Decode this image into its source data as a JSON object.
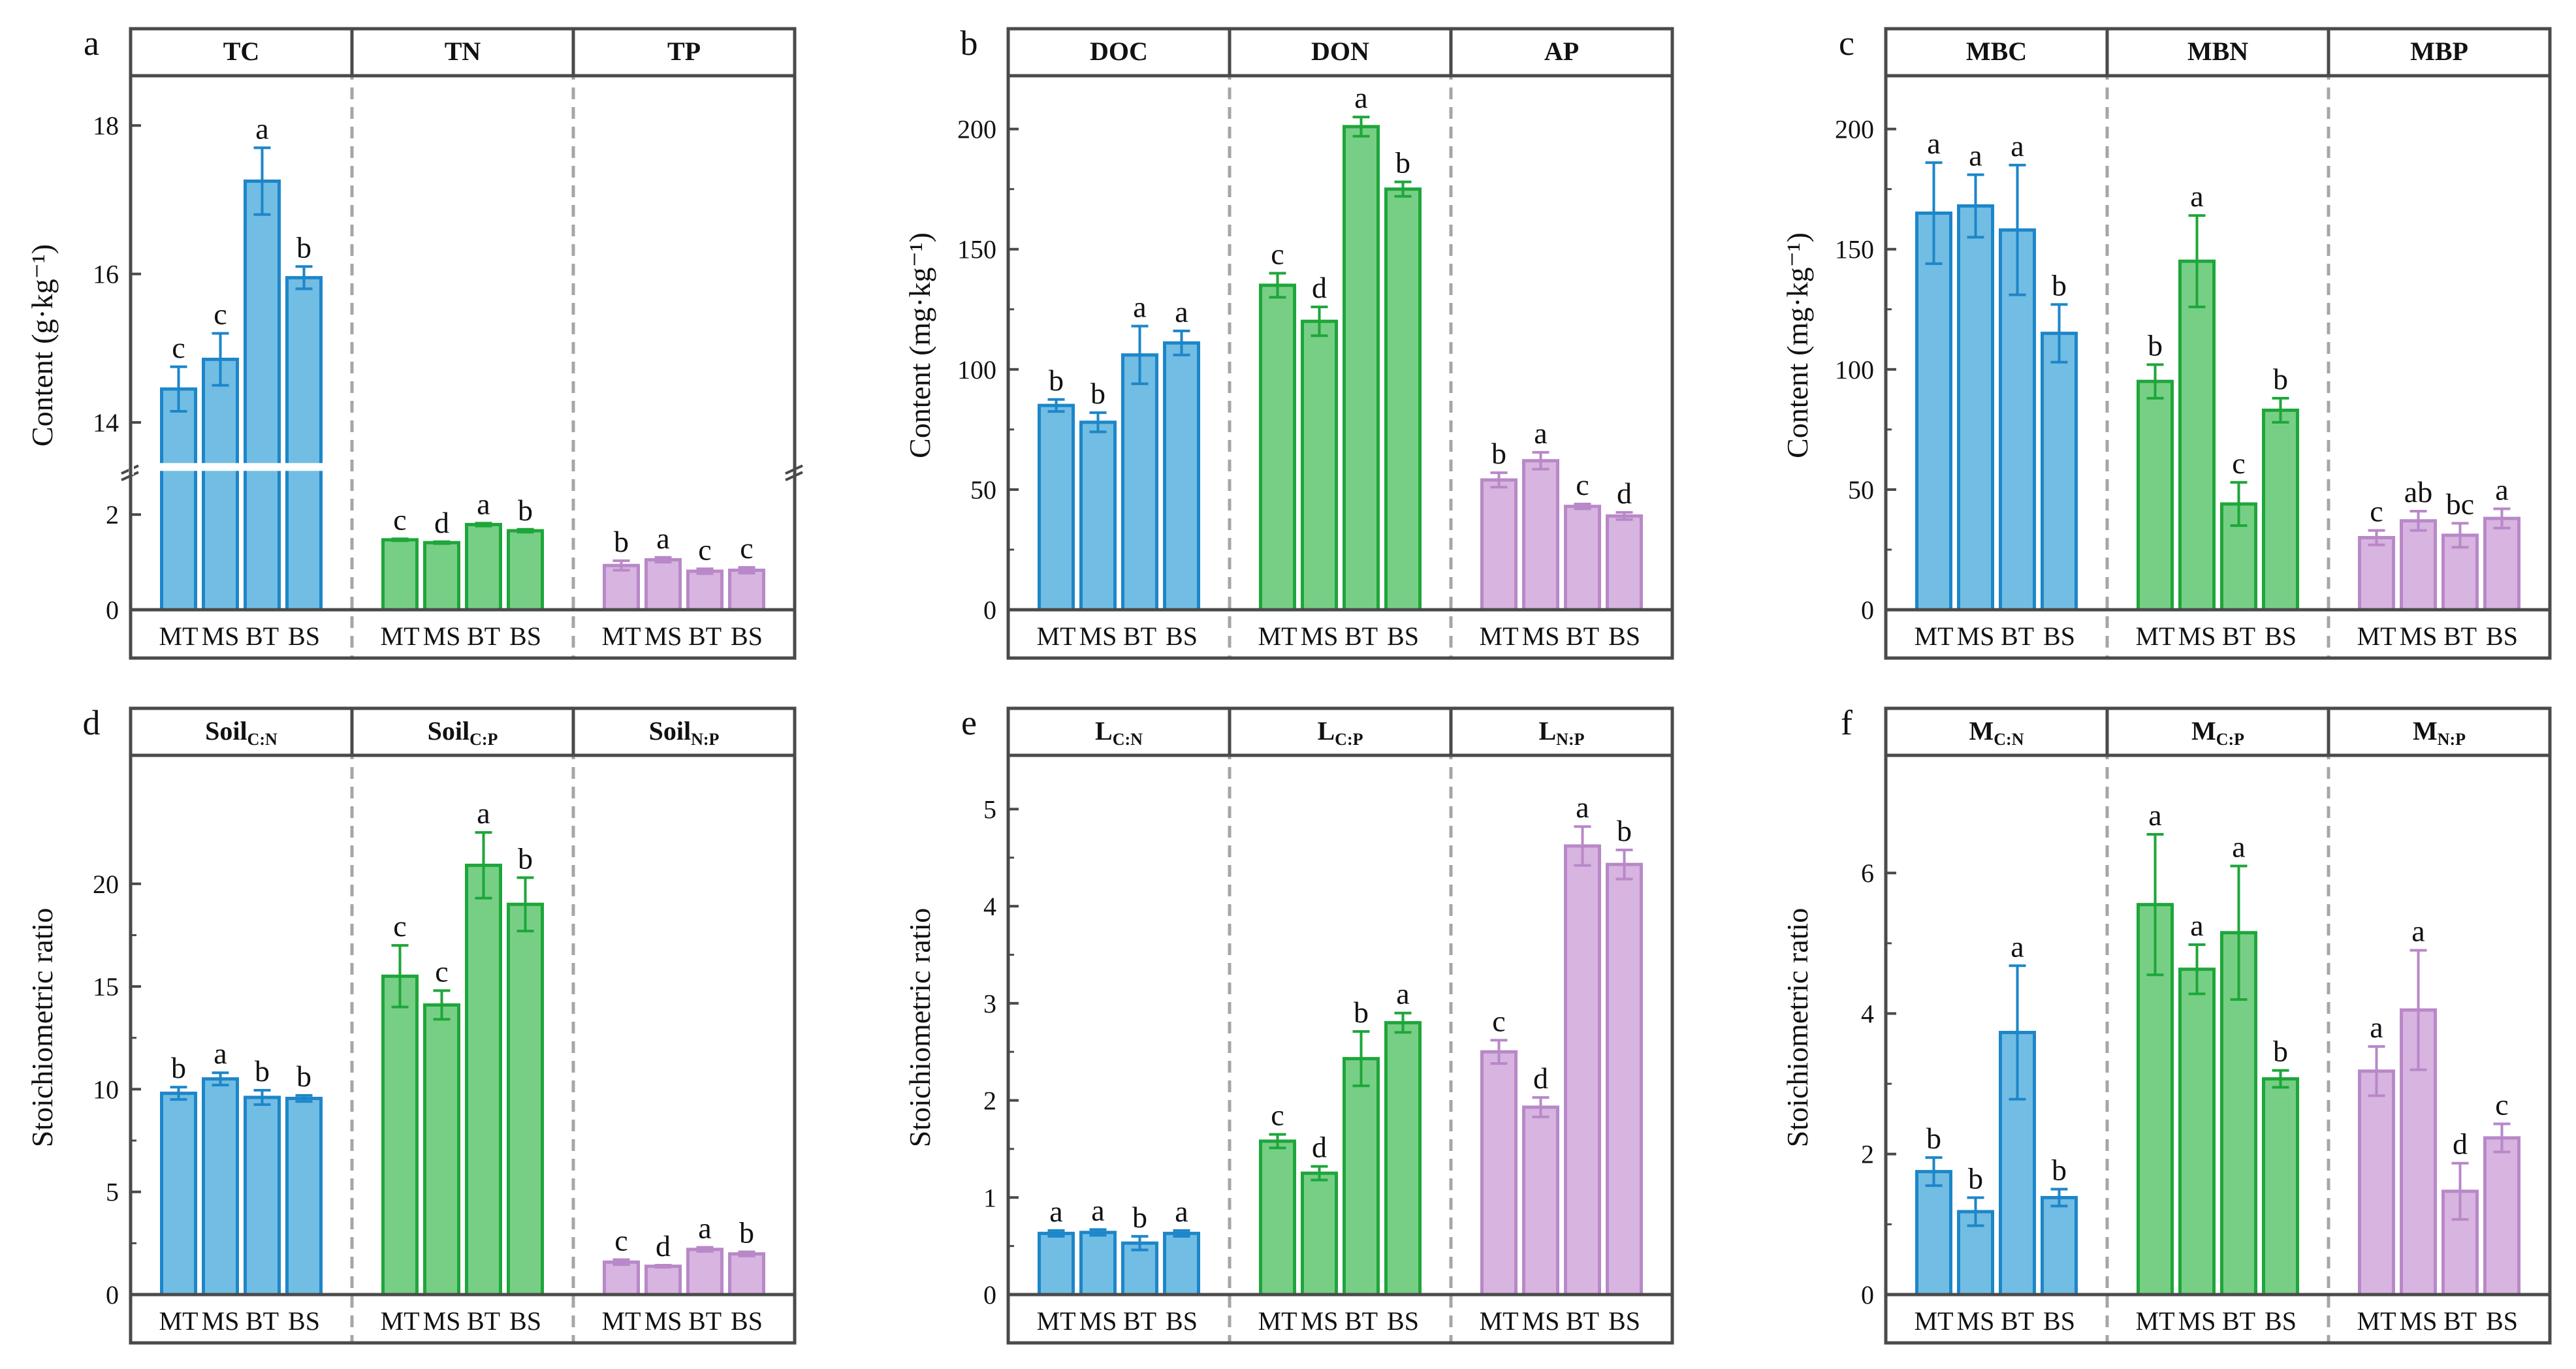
{
  "figure": {
    "groups": [
      "MT",
      "MS",
      "BT",
      "BS"
    ],
    "colors": {
      "blue": {
        "fill": "#72bde3",
        "stroke": "#1d86c9"
      },
      "green": {
        "fill": "#77cf86",
        "stroke": "#1ea63a"
      },
      "purple": {
        "fill": "#d8b4e0",
        "stroke": "#b888c8"
      },
      "separator": "#a6a6a6",
      "frame": "#4a4a4a"
    }
  },
  "chart_data": [
    {
      "type": "bar",
      "panel": "a",
      "ylabel": "Content (g·kg⁻¹)",
      "axis_break": {
        "lower": [
          0,
          3
        ],
        "upper": [
          13.4,
          18.6
        ]
      },
      "lower_ticks": [
        0,
        2
      ],
      "upper_ticks": [
        14,
        16,
        18
      ],
      "categories": [
        "MT",
        "MS",
        "BT",
        "BS"
      ],
      "series": [
        {
          "name": "TC",
          "color": "blue",
          "values": [
            14.45,
            14.85,
            17.25,
            15.95
          ],
          "errors": [
            0.3,
            0.35,
            0.45,
            0.15
          ],
          "letters": [
            "c",
            "c",
            "a",
            "b"
          ]
        },
        {
          "name": "TN",
          "color": "green",
          "values": [
            1.47,
            1.41,
            1.79,
            1.66
          ],
          "errors": [
            0.02,
            0.02,
            0.03,
            0.03
          ],
          "letters": [
            "c",
            "d",
            "a",
            "b"
          ]
        },
        {
          "name": "TP",
          "color": "purple",
          "values": [
            0.93,
            1.05,
            0.81,
            0.83
          ],
          "errors": [
            0.1,
            0.05,
            0.05,
            0.06
          ],
          "letters": [
            "b",
            "a",
            "c",
            "c"
          ]
        }
      ]
    },
    {
      "type": "bar",
      "panel": "b",
      "ylabel": "Content (mg·kg⁻¹)",
      "ylim": [
        0,
        220
      ],
      "ticks": [
        0,
        50,
        100,
        150,
        200
      ],
      "categories": [
        "MT",
        "MS",
        "BT",
        "BS"
      ],
      "series": [
        {
          "name": "DOC",
          "color": "blue",
          "values": [
            85,
            78,
            106,
            111
          ],
          "errors": [
            2.5,
            4,
            12,
            5
          ],
          "letters": [
            "b",
            "b",
            "a",
            "a"
          ]
        },
        {
          "name": "DON",
          "color": "green",
          "values": [
            135,
            120,
            201,
            175
          ],
          "errors": [
            5,
            6,
            4,
            3
          ],
          "letters": [
            "c",
            "d",
            "a",
            "b"
          ]
        },
        {
          "name": "AP",
          "color": "purple",
          "values": [
            54,
            62,
            43,
            39
          ],
          "errors": [
            3,
            3.5,
            1,
            1.5
          ],
          "letters": [
            "b",
            "a",
            "c",
            "d"
          ]
        }
      ]
    },
    {
      "type": "bar",
      "panel": "c",
      "ylabel": "Content (mg·kg⁻¹)",
      "ylim": [
        0,
        220
      ],
      "ticks": [
        0,
        50,
        100,
        150,
        200
      ],
      "categories": [
        "MT",
        "MS",
        "BT",
        "BS"
      ],
      "series": [
        {
          "name": "MBC",
          "color": "blue",
          "values": [
            165,
            168,
            158,
            115
          ],
          "errors": [
            21,
            13,
            27,
            12
          ],
          "letters": [
            "a",
            "a",
            "a",
            "b"
          ]
        },
        {
          "name": "MBN",
          "color": "green",
          "values": [
            95,
            145,
            44,
            83
          ],
          "errors": [
            7,
            19,
            9,
            5
          ],
          "letters": [
            "b",
            "a",
            "c",
            "b"
          ]
        },
        {
          "name": "MBP",
          "color": "purple",
          "values": [
            30,
            37,
            31,
            38
          ],
          "errors": [
            3,
            4,
            5,
            4
          ],
          "letters": [
            "c",
            "ab",
            "bc",
            "a"
          ]
        }
      ]
    },
    {
      "type": "bar",
      "panel": "d",
      "ylabel": "Stoichiometric ratio",
      "ylim": [
        0,
        26
      ],
      "ticks": [
        0,
        5,
        10,
        15,
        20
      ],
      "categories": [
        "MT",
        "MS",
        "BT",
        "BS"
      ],
      "series": [
        {
          "name": "Soil",
          "sub": "C:N",
          "color": "blue",
          "values": [
            9.8,
            10.5,
            9.6,
            9.55
          ],
          "errors": [
            0.3,
            0.3,
            0.35,
            0.15
          ],
          "letters": [
            "b",
            "a",
            "b",
            "b"
          ]
        },
        {
          "name": "Soil",
          "sub": "C:P",
          "color": "green",
          "values": [
            15.5,
            14.1,
            20.9,
            19.0
          ],
          "errors": [
            1.5,
            0.7,
            1.6,
            1.3
          ],
          "letters": [
            "c",
            "c",
            "a",
            "b"
          ]
        },
        {
          "name": "Soil",
          "sub": "N:P",
          "color": "purple",
          "values": [
            1.58,
            1.38,
            2.2,
            1.98
          ],
          "errors": [
            0.12,
            0.05,
            0.1,
            0.1
          ],
          "letters": [
            "c",
            "d",
            "a",
            "b"
          ]
        }
      ]
    },
    {
      "type": "bar",
      "panel": "e",
      "ylabel": "Stoichiometric ratio",
      "ylim": [
        0,
        5.5
      ],
      "ticks": [
        0,
        1,
        2,
        3,
        4,
        5
      ],
      "categories": [
        "MT",
        "MS",
        "BT",
        "BS"
      ],
      "series": [
        {
          "name": "L",
          "sub": "C:N",
          "color": "blue",
          "values": [
            0.63,
            0.64,
            0.53,
            0.63
          ],
          "errors": [
            0.03,
            0.03,
            0.07,
            0.03
          ],
          "letters": [
            "a",
            "a",
            "b",
            "a"
          ]
        },
        {
          "name": "L",
          "sub": "C:P",
          "color": "green",
          "values": [
            1.58,
            1.25,
            2.43,
            2.8
          ],
          "errors": [
            0.07,
            0.07,
            0.28,
            0.1
          ],
          "letters": [
            "c",
            "d",
            "b",
            "a"
          ]
        },
        {
          "name": "L",
          "sub": "N:P",
          "color": "purple",
          "values": [
            2.5,
            1.93,
            4.62,
            4.43
          ],
          "errors": [
            0.12,
            0.1,
            0.2,
            0.15
          ],
          "letters": [
            "c",
            "d",
            "a",
            "b"
          ]
        }
      ]
    },
    {
      "type": "bar",
      "panel": "f",
      "ylabel": "Stoichiometric ratio",
      "ylim": [
        0,
        7.6
      ],
      "ticks": [
        0,
        2,
        4,
        6
      ],
      "categories": [
        "MT",
        "MS",
        "BT",
        "BS"
      ],
      "series": [
        {
          "name": "M",
          "sub": "C:N",
          "color": "blue",
          "values": [
            1.75,
            1.18,
            3.73,
            1.38
          ],
          "errors": [
            0.2,
            0.2,
            0.95,
            0.12
          ],
          "letters": [
            "b",
            "b",
            "a",
            "b"
          ]
        },
        {
          "name": "M",
          "sub": "C:P",
          "color": "green",
          "values": [
            5.55,
            4.63,
            5.15,
            3.07
          ],
          "errors": [
            1.0,
            0.35,
            0.95,
            0.12
          ],
          "letters": [
            "a",
            "a",
            "a",
            "b"
          ]
        },
        {
          "name": "M",
          "sub": "N:P",
          "color": "purple",
          "values": [
            3.18,
            4.05,
            1.47,
            2.23
          ],
          "errors": [
            0.35,
            0.85,
            0.4,
            0.2
          ],
          "letters": [
            "a",
            "a",
            "d",
            "c"
          ]
        }
      ]
    }
  ]
}
